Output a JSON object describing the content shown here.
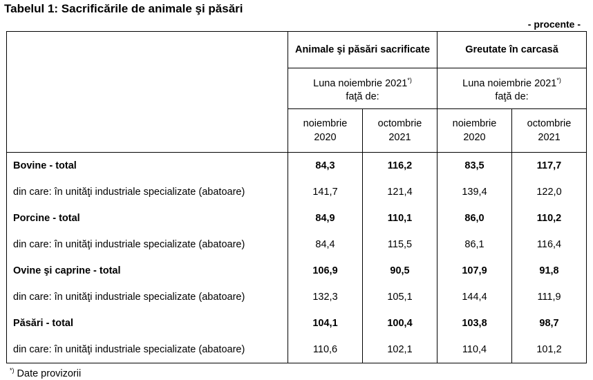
{
  "title": "Tabelul 1: Sacrificările de animale şi păsări",
  "unit": "- procente -",
  "header": {
    "group1": "Animale şi păsări sacrificate",
    "group2": "Greutate în carcasă",
    "period_line1": "Luna noiembrie 2021",
    "period_sup": "*)",
    "period_line2": "faţă de:",
    "col1_line1": "noiembrie",
    "col1_line2": "2020",
    "col2_line1": "octombrie",
    "col2_line2": "2021",
    "col3_line1": "noiembrie",
    "col3_line2": "2020",
    "col4_line1": "octombrie",
    "col4_line2": "2021"
  },
  "rows": [
    {
      "label": "Bovine - total",
      "bold": true,
      "values": [
        "84,3",
        "116,2",
        "83,5",
        "117,7"
      ]
    },
    {
      "label": "din care: în unităţi industriale specializate (abatoare)",
      "bold": false,
      "values": [
        "141,7",
        "121,4",
        "139,4",
        "122,0"
      ]
    },
    {
      "label": "Porcine - total",
      "bold": true,
      "values": [
        "84,9",
        "110,1",
        "86,0",
        "110,2"
      ]
    },
    {
      "label": "din care: în unităţi industriale specializate (abatoare)",
      "bold": false,
      "values": [
        "84,4",
        "115,5",
        "86,1",
        "116,4"
      ]
    },
    {
      "label": "Ovine şi caprine - total",
      "bold": true,
      "values": [
        "106,9",
        "90,5",
        "107,9",
        "91,8"
      ]
    },
    {
      "label": "din care: în unităţi industriale specializate (abatoare)",
      "bold": false,
      "values": [
        "132,3",
        "105,1",
        "144,4",
        "111,9"
      ]
    },
    {
      "label": "Păsări - total",
      "bold": true,
      "values": [
        "104,1",
        "100,4",
        "103,8",
        "98,7"
      ]
    },
    {
      "label": "din care: în unităţi industriale specializate (abatoare)",
      "bold": false,
      "values": [
        "110,6",
        "102,1",
        "110,4",
        "101,2"
      ]
    }
  ],
  "footnote": {
    "mark": "*)",
    "text": " Date provizorii"
  }
}
